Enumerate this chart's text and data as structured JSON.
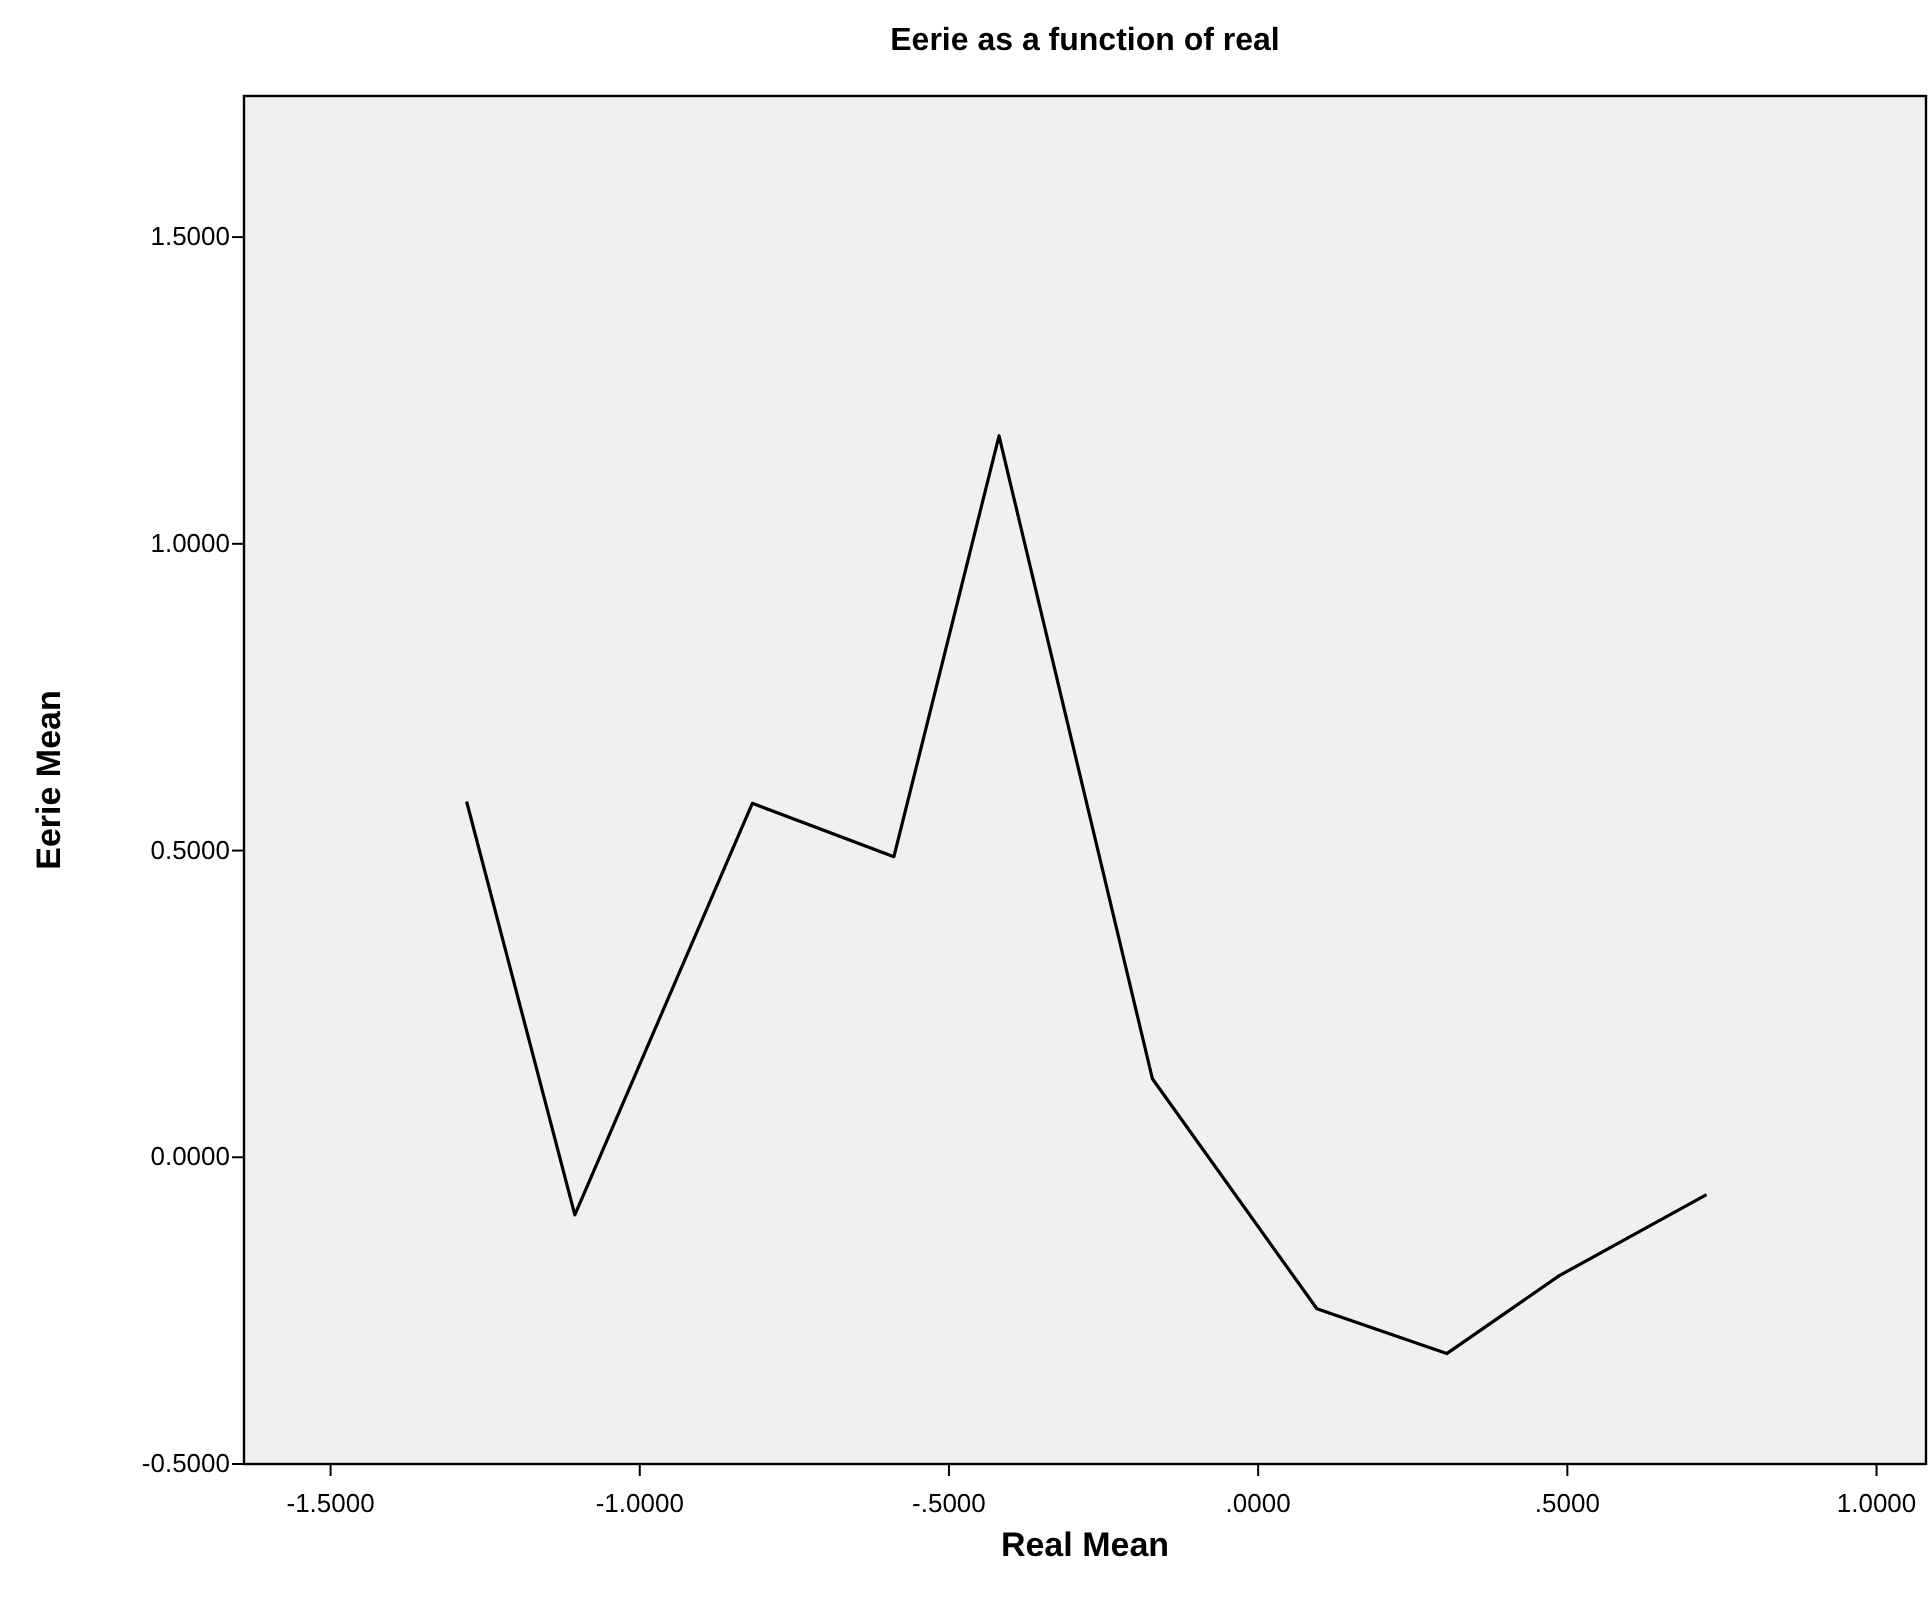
{
  "chart_data": {
    "type": "line",
    "title": "Eerie as a function of real",
    "xlabel": "Real Mean",
    "ylabel": "Eerie Mean",
    "x": [
      -1.28,
      -1.105,
      -0.818,
      -0.589,
      -0.419,
      -0.171,
      0.095,
      0.305,
      0.487,
      0.725
    ],
    "series": [
      {
        "color": "#000000",
        "values": [
          0.58,
          -0.094,
          0.577,
          0.49,
          1.176,
          0.128,
          -0.247,
          -0.32,
          -0.193,
          -0.061
        ]
      }
    ],
    "xlim": [
      -1.64,
      1.08
    ],
    "ylim": [
      -0.5,
      1.73
    ],
    "xticks": [
      {
        "value": -1.5,
        "label": "-1.5000"
      },
      {
        "value": -1,
        "label": "-1.0000"
      },
      {
        "value": -0.5,
        "label": "-.5000"
      },
      {
        "value": 0,
        "label": ".0000"
      },
      {
        "value": 0.5,
        "label": ".5000"
      },
      {
        "value": 1,
        "label": "1.0000"
      }
    ],
    "yticks": [
      {
        "value": -0.5,
        "label": "-0.5000"
      },
      {
        "value": 0,
        "label": "0.0000"
      },
      {
        "value": 0.5,
        "label": "0.5000"
      },
      {
        "value": 1,
        "label": "1.0000"
      },
      {
        "value": 1.5,
        "label": "1.5000"
      }
    ],
    "grid": false,
    "marker": "none",
    "line_style": "solid"
  }
}
